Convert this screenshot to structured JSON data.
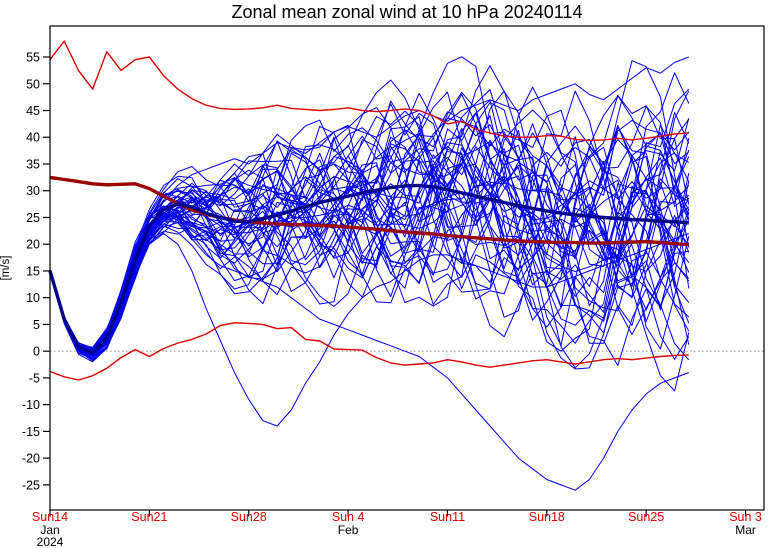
{
  "title": "Zonal mean zonal wind at 10 hPa 20240114",
  "chart_data": {
    "type": "line",
    "title": "Zonal mean zonal wind at 10 hPa 20240114",
    "xlabel": "",
    "ylabel": "[m/s]",
    "x_unit": "days since 2024-01-14",
    "xlim": [
      0,
      50.3
    ],
    "ylim": [
      -29.7,
      60.8
    ],
    "yticks": [
      -25,
      -20,
      -15,
      -10,
      -5,
      0,
      5,
      10,
      15,
      20,
      25,
      30,
      35,
      40,
      45,
      50,
      55
    ],
    "xticks": [
      {
        "day": 0,
        "label": "Sun14",
        "month": "Jan",
        "year": "2024"
      },
      {
        "day": 7,
        "label": "Sun21"
      },
      {
        "day": 14,
        "label": "Sun28"
      },
      {
        "day": 21,
        "label": "Sun 4",
        "month": "Feb"
      },
      {
        "day": 28,
        "label": "Sun11"
      },
      {
        "day": 35,
        "label": "Sun18"
      },
      {
        "day": 42,
        "label": "Sun25"
      },
      {
        "day": 49,
        "label": "Sun 3",
        "month": "Mar"
      }
    ],
    "grid": false,
    "zero_line": {
      "show": true,
      "color": "#909090",
      "style": "dotted"
    },
    "legend": "none",
    "series": [
      {
        "name": "ensemble-mean",
        "color": "#00008b",
        "width": 3.4,
        "values": [
          15,
          6,
          0.8,
          -0.3,
          2.5,
          9,
          17,
          23.5,
          26.5,
          27.5,
          27,
          25.8,
          25,
          24.3,
          24.2,
          24.8,
          25.4,
          26.2,
          27,
          27.8,
          28.4,
          29,
          29.6,
          30.1,
          30.6,
          30.9,
          31,
          30.7,
          30.2,
          29.6,
          29,
          28.4,
          27.8,
          27.2,
          26.7,
          26.2,
          25.8,
          25.5,
          25.2,
          25,
          24.8,
          24.6,
          24.5,
          24.3,
          24.2,
          24
        ]
      },
      {
        "name": "climatological-mean",
        "color": "#990000",
        "width": 3.4,
        "values": [
          32.5,
          32.1,
          31.7,
          31.3,
          31.1,
          31.2,
          31.3,
          30.4,
          29,
          27.6,
          26.4,
          25.6,
          25,
          24.5,
          24.2,
          24,
          23.8,
          23.7,
          23.6,
          23.5,
          23.4,
          23.2,
          23,
          22.8,
          22.5,
          22.3,
          22.1,
          21.9,
          21.6,
          21.4,
          21.2,
          21,
          20.8,
          20.6,
          20.5,
          20.4,
          20.3,
          20.3,
          20.2,
          20.2,
          20.3,
          20.4,
          20.5,
          20.3,
          20.1,
          19.9
        ]
      },
      {
        "name": "climatological-max",
        "color": "#e00000",
        "width": 1.4,
        "values": [
          54.5,
          58,
          52.5,
          49,
          56,
          52.5,
          54.5,
          55,
          51.5,
          49,
          47.2,
          46,
          45.4,
          45.2,
          45.3,
          45.5,
          46,
          45.4,
          45.2,
          45,
          45.2,
          45.5,
          45,
          44.8,
          45,
          45.3,
          45,
          44,
          42.5,
          43,
          41.5,
          40.8,
          40.2,
          40,
          40,
          40.3,
          40.2,
          39.6,
          39.4,
          39.5,
          39.8,
          39.5,
          39.8,
          40.2,
          40.6,
          40.8
        ]
      },
      {
        "name": "climatological-min",
        "color": "#e00000",
        "width": 1.4,
        "values": [
          -3.8,
          -4.8,
          -5.4,
          -4.6,
          -3.2,
          -1.2,
          0.3,
          -1,
          0.5,
          1.5,
          2.2,
          3.2,
          4.8,
          5.3,
          5.2,
          5,
          4.2,
          4.4,
          2.2,
          1.9,
          0.4,
          0.3,
          0.2,
          -1.2,
          -2.2,
          -2.6,
          -2.4,
          -2.2,
          -1.6,
          -2,
          -2.6,
          -3,
          -2.6,
          -2.2,
          -1.8,
          -1.6,
          -2,
          -2.4,
          -2,
          -1.6,
          -1.4,
          -1.6,
          -1.3,
          -1,
          -0.8,
          -0.7
        ]
      }
    ],
    "ensemble": {
      "name": "ensemble-members",
      "color": "#0000ee",
      "width": 1,
      "count": 50,
      "seed": 1337,
      "mean_ref": "ensemble-mean",
      "spread_halfwidth": [
        0.3,
        0.8,
        1.2,
        1.5,
        2,
        2.6,
        3,
        3.2,
        4,
        5,
        6.5,
        8,
        9.5,
        11,
        12,
        13,
        14,
        15,
        15.5,
        16,
        16.5,
        17,
        17.5,
        18,
        18.3,
        18.6,
        19,
        19.3,
        19.6,
        20,
        20.3,
        20.6,
        21,
        21.3,
        21.6,
        22,
        22.3,
        22.6,
        23,
        23.3,
        23.6,
        24,
        24.3,
        24.6,
        25,
        25.3
      ],
      "explicit_members": [
        [
          15,
          6,
          1,
          -0.2,
          2,
          7,
          14,
          20,
          22,
          20,
          15,
          8,
          2,
          -4,
          -9,
          -13,
          -14,
          -11,
          -6,
          -2,
          3,
          7,
          10,
          12,
          13,
          15,
          17,
          18,
          18,
          17,
          16,
          15,
          14,
          13,
          12,
          12,
          13,
          14,
          15,
          16,
          17,
          18,
          19,
          20,
          21,
          22
        ],
        [
          15,
          6,
          0.5,
          0,
          3,
          9,
          16,
          22,
          25,
          24,
          21,
          18,
          16,
          15,
          14,
          13,
          12,
          10,
          8,
          6,
          5,
          4,
          3,
          2,
          1,
          0,
          -1,
          -3,
          -5,
          -8,
          -11,
          -14,
          -17,
          -20,
          -22,
          -24,
          -25,
          -26,
          -24,
          -20,
          -15,
          -11,
          -8,
          -6,
          -5,
          -4
        ],
        [
          15,
          5.5,
          0.2,
          -0.5,
          2,
          8,
          15,
          23,
          28,
          31,
          33,
          34,
          35,
          36,
          35,
          37,
          39,
          38,
          37,
          39,
          41,
          42,
          41,
          40,
          42,
          44,
          45,
          44,
          43,
          45,
          46,
          47,
          46,
          45,
          47,
          48,
          49,
          50,
          48,
          47,
          49,
          51,
          53,
          52,
          54,
          55
        ]
      ]
    }
  },
  "axis_style": {
    "frame_color": "#000000",
    "tick_color": "#000000",
    "ytick_label_color": "#000000",
    "xtick_label_color": "#dd0000",
    "month_label_color": "#000000"
  }
}
